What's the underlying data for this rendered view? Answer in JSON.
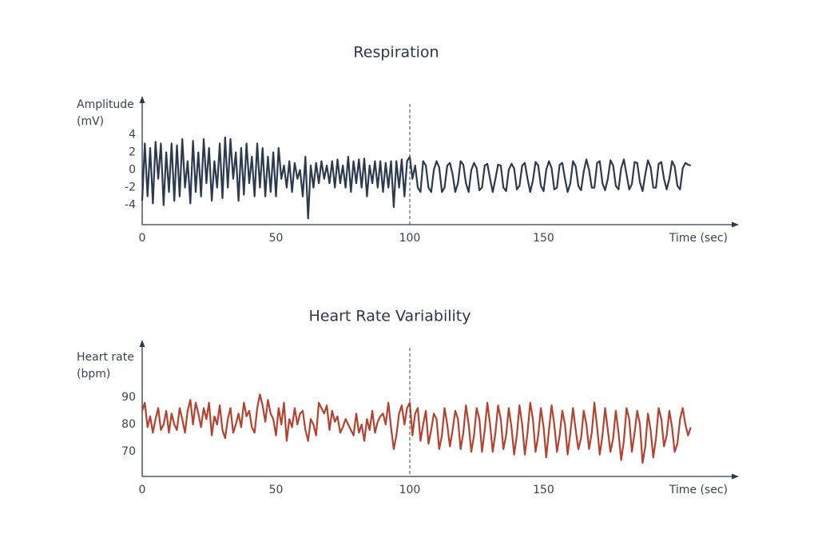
{
  "chart_data": [
    {
      "type": "line",
      "title": "Respiration",
      "y_label": [
        "Amplitude",
        "(mV)"
      ],
      "x_label": "Time (sec)",
      "x": [
        0,
        1,
        2,
        3,
        4,
        5,
        6,
        7,
        8,
        9,
        10,
        11,
        12,
        13,
        14,
        15,
        16,
        17,
        18,
        19,
        20,
        21,
        22,
        23,
        24,
        25,
        26,
        27,
        28,
        29,
        30,
        31,
        32,
        33,
        34,
        35,
        36,
        37,
        38,
        39,
        40,
        41,
        42,
        43,
        44,
        45,
        46,
        47,
        48,
        49,
        50,
        51,
        52,
        53,
        54,
        55,
        56,
        57,
        58,
        59,
        60,
        61,
        62,
        63,
        64,
        65,
        66,
        67,
        68,
        69,
        70,
        71,
        72,
        73,
        74,
        75,
        76,
        77,
        78,
        79,
        80,
        81,
        82,
        83,
        84,
        85,
        86,
        87,
        88,
        89,
        90,
        91,
        92,
        93,
        94,
        95,
        96,
        97,
        98,
        99,
        100,
        101,
        102,
        103,
        104,
        105,
        106,
        107,
        108,
        109,
        110,
        111,
        112,
        113,
        114,
        115,
        116,
        117,
        118,
        119,
        120,
        121,
        122,
        123,
        124,
        125,
        126,
        127,
        128,
        129,
        130,
        131,
        132,
        133,
        134,
        135,
        136,
        137,
        138,
        139,
        140,
        141,
        142,
        143,
        144,
        145,
        146,
        147,
        148,
        149,
        150,
        151,
        152,
        153,
        154,
        155,
        156,
        157,
        158,
        159,
        160,
        161,
        162,
        163,
        164,
        165,
        166,
        167,
        168,
        169,
        170,
        171,
        172,
        173,
        174,
        175,
        176,
        177,
        178,
        179,
        180,
        181,
        182,
        183,
        184,
        185,
        186,
        187,
        188,
        189,
        190,
        191,
        192,
        193,
        194,
        195,
        196,
        197,
        198,
        199,
        200,
        201,
        202,
        203,
        204,
        205
      ],
      "series": [
        {
          "color": "#2b3a4e",
          "values": [
            -3.5,
            3,
            -3,
            2.5,
            -3.8,
            3.2,
            -1,
            3,
            -4,
            2,
            -2.5,
            3,
            -3.5,
            2.8,
            -3,
            3.5,
            -2,
            1,
            -3.8,
            3.3,
            -2.5,
            2,
            -3,
            3.5,
            -1.5,
            2.5,
            -3.5,
            1,
            -2,
            3,
            -3.2,
            3.7,
            -2,
            3.5,
            -1,
            2,
            -3.5,
            2.5,
            -2.8,
            3,
            -1.5,
            1.5,
            -3,
            3,
            -2,
            2.5,
            -3,
            1.5,
            -2.5,
            2,
            -3,
            2.5,
            -1,
            0.5,
            -2,
            1,
            -2.5,
            0.8,
            -1,
            0,
            -3,
            1.5,
            -5.5,
            0.5,
            -2,
            0.8,
            -1.5,
            1,
            -1,
            0.5,
            -1.5,
            1,
            -2,
            1.2,
            -1.5,
            0.5,
            -2,
            1.5,
            -2.5,
            1,
            -1.5,
            1.2,
            -2,
            1.3,
            -3,
            0.5,
            -1.5,
            1,
            -2,
            1,
            -2.5,
            0.8,
            -2,
            1,
            -4.2,
            1,
            -2,
            1.2,
            -3,
            1,
            1.5,
            -1,
            0.5,
            -2,
            -2.5,
            1,
            0.5,
            -2,
            -2.5,
            0,
            1,
            0.3,
            -2.5,
            -2,
            0.5,
            0.8,
            -0.5,
            -2.5,
            -1.5,
            1,
            0.6,
            -1.5,
            -2.5,
            0,
            0.8,
            0.2,
            -2.3,
            -2,
            0.5,
            0.7,
            -1,
            -2.5,
            -1,
            0.6,
            0.5,
            -2,
            -2.4,
            0,
            0.7,
            0.2,
            -2.2,
            -1.8,
            0.5,
            0.8,
            -1,
            -2.5,
            -1.2,
            0.9,
            0.5,
            -1.8,
            -2.4,
            0,
            1,
            0.2,
            -2.2,
            -2,
            0.6,
            0.8,
            -1,
            -2.5,
            -1.5,
            1,
            0.4,
            -1.8,
            -2.3,
            -0.2,
            1.2,
            0,
            -2,
            -2,
            0.8,
            1,
            -1.5,
            -2.3,
            -1,
            1.1,
            0.5,
            -1.8,
            -2.2,
            0.2,
            1.2,
            -0.5,
            -2.2,
            -1.6,
            0.9,
            0.8,
            -1.4,
            -2.4,
            -0.5,
            1.1,
            0.3,
            -2,
            -2,
            0.7,
            0.9,
            -1,
            -2.2,
            -1,
            1,
            0.4,
            -1.8,
            -2.2,
            0.2,
            0.8,
            0.6,
            0.5
          ]
        }
      ],
      "xlim": [
        0,
        223
      ],
      "ylim": [
        -6.2,
        8.4
      ],
      "xticks": [
        0,
        50,
        100,
        150
      ],
      "yticks": [
        4,
        2,
        0,
        -2,
        -4
      ],
      "marker_x": 100
    },
    {
      "type": "line",
      "title": "Heart Rate Variability",
      "y_label": [
        "Heart rate",
        "(bpm)"
      ],
      "x_label": "Time (sec)",
      "x": [
        0,
        1,
        2,
        3,
        4,
        5,
        6,
        7,
        8,
        9,
        10,
        11,
        12,
        13,
        14,
        15,
        16,
        17,
        18,
        19,
        20,
        21,
        22,
        23,
        24,
        25,
        26,
        27,
        28,
        29,
        30,
        31,
        32,
        33,
        34,
        35,
        36,
        37,
        38,
        39,
        40,
        41,
        42,
        43,
        44,
        45,
        46,
        47,
        48,
        49,
        50,
        51,
        52,
        53,
        54,
        55,
        56,
        57,
        58,
        59,
        60,
        61,
        62,
        63,
        64,
        65,
        66,
        67,
        68,
        69,
        70,
        71,
        72,
        73,
        74,
        75,
        76,
        77,
        78,
        79,
        80,
        81,
        82,
        83,
        84,
        85,
        86,
        87,
        88,
        89,
        90,
        91,
        92,
        93,
        94,
        95,
        96,
        97,
        98,
        99,
        100,
        101,
        102,
        103,
        104,
        105,
        106,
        107,
        108,
        109,
        110,
        111,
        112,
        113,
        114,
        115,
        116,
        117,
        118,
        119,
        120,
        121,
        122,
        123,
        124,
        125,
        126,
        127,
        128,
        129,
        130,
        131,
        132,
        133,
        134,
        135,
        136,
        137,
        138,
        139,
        140,
        141,
        142,
        143,
        144,
        145,
        146,
        147,
        148,
        149,
        150,
        151,
        152,
        153,
        154,
        155,
        156,
        157,
        158,
        159,
        160,
        161,
        162,
        163,
        164,
        165,
        166,
        167,
        168,
        169,
        170,
        171,
        172,
        173,
        174,
        175,
        176,
        177,
        178,
        179,
        180,
        181,
        182,
        183,
        184,
        185,
        186,
        187,
        188,
        189,
        190,
        191,
        192,
        193,
        194,
        195,
        196,
        197,
        198,
        199,
        200,
        201,
        202,
        203,
        204,
        205
      ],
      "series": [
        {
          "color": "#b5412f",
          "values": [
            85,
            88,
            79,
            83,
            77,
            82,
            86,
            78,
            80,
            85,
            77,
            84,
            80,
            78,
            86,
            82,
            77,
            85,
            89,
            80,
            88,
            84,
            79,
            86,
            82,
            88,
            76,
            83,
            80,
            87,
            78,
            75,
            82,
            86,
            77,
            80,
            84,
            79,
            88,
            83,
            85,
            79,
            77,
            86,
            91,
            87,
            81,
            89,
            84,
            82,
            76,
            86,
            80,
            88,
            74,
            82,
            79,
            86,
            80,
            84,
            85,
            78,
            74,
            82,
            80,
            76,
            88,
            86,
            84,
            87,
            78,
            85,
            81,
            83,
            77,
            79,
            82,
            80,
            78,
            76,
            84,
            77,
            80,
            74,
            82,
            78,
            85,
            77,
            81,
            83,
            84,
            80,
            88,
            79,
            71,
            76,
            84,
            87,
            80,
            86,
            88,
            76,
            84,
            86,
            74,
            80,
            85,
            73,
            78,
            84,
            82,
            71,
            76,
            86,
            80,
            72,
            78,
            85,
            82,
            71,
            77,
            87,
            80,
            70,
            76,
            86,
            82,
            70,
            78,
            88,
            80,
            70,
            77,
            87,
            82,
            71,
            76,
            86,
            79,
            69,
            76,
            87,
            80,
            69,
            77,
            88,
            82,
            70,
            76,
            86,
            79,
            68,
            78,
            87,
            80,
            70,
            76,
            85,
            80,
            69,
            77,
            86,
            78,
            71,
            75,
            85,
            80,
            71,
            77,
            88,
            79,
            69,
            76,
            86,
            78,
            70,
            75,
            85,
            77,
            67,
            74,
            86,
            82,
            70,
            77,
            85,
            80,
            66,
            72,
            84,
            78,
            68,
            75,
            86,
            82,
            72,
            76,
            85,
            79,
            70,
            73,
            82,
            86,
            80,
            76,
            79
          ]
        }
      ],
      "xlim": [
        0,
        223
      ],
      "ylim": [
        61,
        111
      ],
      "xticks": [
        0,
        50,
        100,
        150
      ],
      "yticks": [
        90,
        80,
        70
      ],
      "marker_x": 100
    }
  ]
}
